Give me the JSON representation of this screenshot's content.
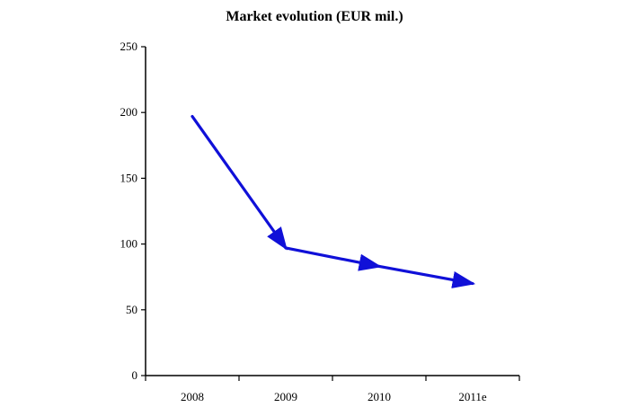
{
  "chart_data": {
    "type": "line",
    "title": "Market evolution (EUR mil.)",
    "categories": [
      "2008",
      "2009",
      "2010",
      "2011e"
    ],
    "series": [
      {
        "values": [
          197,
          97,
          83,
          70
        ],
        "color": "#1010d8"
      }
    ],
    "ylim": [
      0,
      250
    ],
    "yticks": [
      0,
      50,
      100,
      150,
      200,
      250
    ],
    "grid": false,
    "legend": "none",
    "marker": "arrow"
  }
}
